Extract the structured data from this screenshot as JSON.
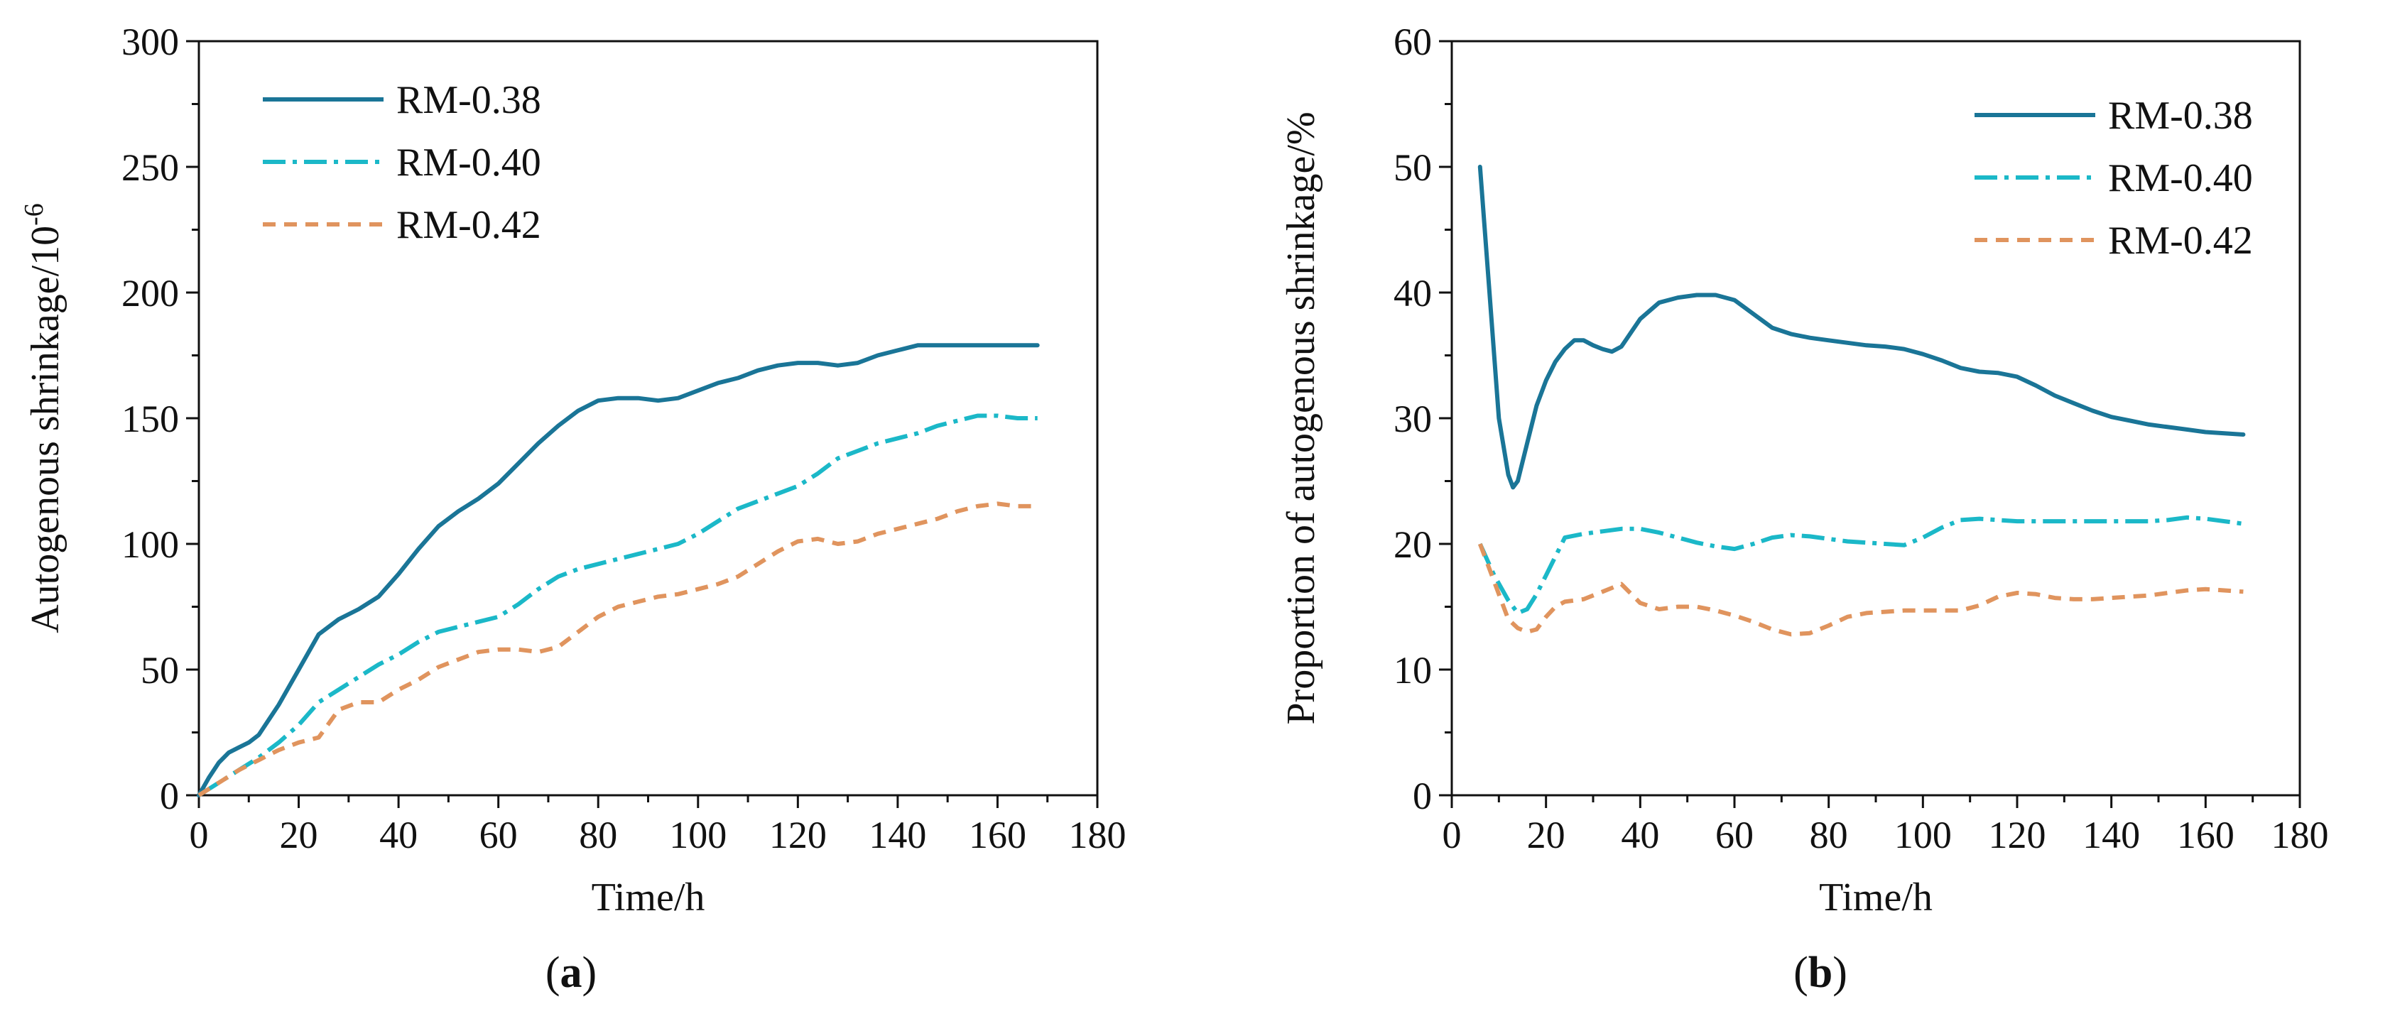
{
  "colors": {
    "RM-0.38": "#1a7597",
    "RM-0.40": "#1bb8c8",
    "RM-0.42": "#e0945e",
    "axis": "#111111"
  },
  "chart_data": [
    {
      "type": "line",
      "panel_label": "a",
      "xlabel": "Time/h",
      "ylabel": "Autogenous shrinkage/10",
      "ylabel_superscript": "-6",
      "xlim": [
        0,
        180
      ],
      "ylim": [
        0,
        300
      ],
      "xticks": [
        0,
        20,
        40,
        60,
        80,
        100,
        120,
        140,
        160,
        180
      ],
      "yticks": [
        0,
        50,
        100,
        150,
        200,
        250,
        300
      ],
      "xtick_labels": [
        "0",
        "20",
        "40",
        "60",
        "80",
        "100",
        "120",
        "140",
        "160",
        "180"
      ],
      "ytick_labels": [
        "0",
        "50",
        "100",
        "150",
        "200",
        "250",
        "300"
      ],
      "legend_position": "top-left",
      "grid": false,
      "series": [
        {
          "name": "RM-0.38",
          "style": "solid",
          "x": [
            0,
            2,
            4,
            6,
            8,
            10,
            12,
            16,
            20,
            24,
            28,
            32,
            36,
            40,
            44,
            48,
            52,
            56,
            60,
            64,
            68,
            72,
            76,
            80,
            84,
            88,
            92,
            96,
            100,
            104,
            108,
            112,
            116,
            120,
            124,
            128,
            132,
            136,
            140,
            144,
            148,
            152,
            156,
            160,
            164,
            168
          ],
          "values": [
            0,
            7,
            13,
            17,
            19,
            21,
            24,
            36,
            50,
            64,
            70,
            74,
            79,
            88,
            98,
            107,
            113,
            118,
            124,
            132,
            140,
            147,
            153,
            157,
            158,
            158,
            157,
            158,
            161,
            164,
            166,
            169,
            171,
            172,
            172,
            171,
            172,
            175,
            177,
            179,
            179,
            179,
            179,
            179,
            179,
            179
          ]
        },
        {
          "name": "RM-0.40",
          "style": "dashdot",
          "x": [
            0,
            4,
            8,
            12,
            16,
            20,
            24,
            28,
            32,
            36,
            40,
            44,
            48,
            52,
            56,
            60,
            64,
            68,
            72,
            76,
            80,
            84,
            88,
            92,
            96,
            100,
            104,
            108,
            112,
            116,
            120,
            124,
            128,
            132,
            136,
            140,
            144,
            148,
            152,
            156,
            160,
            164,
            168
          ],
          "values": [
            0,
            5,
            10,
            15,
            21,
            28,
            37,
            42,
            47,
            52,
            56,
            61,
            65,
            67,
            69,
            71,
            76,
            82,
            87,
            90,
            92,
            94,
            96,
            98,
            100,
            104,
            109,
            114,
            117,
            120,
            123,
            128,
            134,
            137,
            140,
            142,
            144,
            147,
            149,
            151,
            151,
            150,
            150
          ]
        },
        {
          "name": "RM-0.42",
          "style": "dashed",
          "x": [
            0,
            4,
            8,
            12,
            16,
            20,
            24,
            28,
            32,
            36,
            40,
            44,
            48,
            52,
            56,
            60,
            64,
            68,
            72,
            76,
            80,
            84,
            88,
            92,
            96,
            100,
            104,
            108,
            112,
            116,
            120,
            124,
            128,
            132,
            136,
            140,
            144,
            148,
            152,
            156,
            160,
            164,
            168
          ],
          "values": [
            0,
            5,
            10,
            14,
            18,
            21,
            23,
            34,
            37,
            37,
            42,
            46,
            51,
            54,
            57,
            58,
            58,
            57,
            59,
            65,
            71,
            75,
            77,
            79,
            80,
            82,
            84,
            87,
            92,
            97,
            101,
            102,
            100,
            101,
            104,
            106,
            108,
            110,
            113,
            115,
            116,
            115,
            115
          ]
        }
      ]
    },
    {
      "type": "line",
      "panel_label": "b",
      "xlabel": "Time/h",
      "ylabel": "Proportion of autogenous shrinkage/%",
      "xlim": [
        0,
        180
      ],
      "ylim": [
        0,
        60
      ],
      "xticks": [
        0,
        20,
        40,
        60,
        80,
        100,
        120,
        140,
        160,
        180
      ],
      "yticks": [
        0,
        10,
        20,
        30,
        40,
        50,
        60
      ],
      "xtick_labels": [
        "0",
        "20",
        "40",
        "60",
        "80",
        "100",
        "120",
        "140",
        "160",
        "180"
      ],
      "ytick_labels": [
        "0",
        "10",
        "20",
        "30",
        "40",
        "50",
        "60"
      ],
      "legend_position": "top-right",
      "grid": false,
      "series": [
        {
          "name": "RM-0.38",
          "style": "solid",
          "x": [
            6,
            8,
            10,
            12,
            13,
            14,
            16,
            18,
            20,
            22,
            24,
            26,
            28,
            30,
            32,
            34,
            36,
            38,
            40,
            44,
            48,
            52,
            56,
            60,
            64,
            68,
            72,
            76,
            80,
            84,
            88,
            92,
            96,
            100,
            104,
            108,
            112,
            116,
            120,
            124,
            128,
            132,
            136,
            140,
            144,
            148,
            152,
            156,
            160,
            164,
            168
          ],
          "values": [
            50,
            40,
            30,
            25.5,
            24.5,
            25,
            28,
            31,
            33,
            34.5,
            35.5,
            36.2,
            36.2,
            35.8,
            35.5,
            35.3,
            35.7,
            36.8,
            37.9,
            39.2,
            39.6,
            39.8,
            39.8,
            39.4,
            38.3,
            37.2,
            36.7,
            36.4,
            36.2,
            36.0,
            35.8,
            35.7,
            35.5,
            35.1,
            34.6,
            34.0,
            33.7,
            33.6,
            33.3,
            32.6,
            31.8,
            31.2,
            30.6,
            30.1,
            29.8,
            29.5,
            29.3,
            29.1,
            28.9,
            28.8,
            28.7
          ]
        },
        {
          "name": "RM-0.40",
          "style": "dashdot",
          "x": [
            6,
            9,
            12,
            14,
            16,
            18,
            20,
            22,
            24,
            28,
            32,
            36,
            40,
            44,
            48,
            52,
            56,
            60,
            64,
            68,
            72,
            76,
            80,
            84,
            88,
            92,
            96,
            100,
            104,
            108,
            112,
            116,
            120,
            124,
            128,
            132,
            136,
            140,
            144,
            148,
            152,
            156,
            160,
            164,
            168
          ],
          "values": [
            20,
            17.5,
            15.5,
            14.5,
            14.8,
            16,
            17.5,
            19,
            20.5,
            20.8,
            21.0,
            21.2,
            21.2,
            20.9,
            20.5,
            20.1,
            19.8,
            19.6,
            20.0,
            20.5,
            20.7,
            20.6,
            20.4,
            20.2,
            20.1,
            20.0,
            19.9,
            20.5,
            21.3,
            21.9,
            22.0,
            21.9,
            21.8,
            21.8,
            21.8,
            21.8,
            21.8,
            21.8,
            21.8,
            21.8,
            21.9,
            22.1,
            22.0,
            21.8,
            21.6
          ]
        },
        {
          "name": "RM-0.42",
          "style": "dashed",
          "x": [
            6,
            8,
            10,
            12,
            14,
            16,
            18,
            20,
            22,
            24,
            28,
            32,
            36,
            40,
            44,
            48,
            52,
            56,
            60,
            64,
            68,
            72,
            76,
            80,
            84,
            88,
            92,
            96,
            100,
            104,
            108,
            112,
            116,
            120,
            124,
            128,
            132,
            136,
            140,
            144,
            148,
            152,
            156,
            160,
            164,
            168
          ],
          "values": [
            20,
            18,
            16,
            14,
            13.3,
            13.0,
            13.2,
            14.2,
            15.0,
            15.4,
            15.6,
            16.2,
            16.8,
            15.3,
            14.8,
            15.0,
            15.0,
            14.7,
            14.3,
            13.8,
            13.2,
            12.8,
            12.9,
            13.5,
            14.2,
            14.5,
            14.6,
            14.7,
            14.7,
            14.7,
            14.7,
            15.1,
            15.8,
            16.1,
            16.0,
            15.7,
            15.6,
            15.6,
            15.7,
            15.8,
            15.9,
            16.1,
            16.3,
            16.4,
            16.3,
            16.2
          ]
        }
      ]
    }
  ]
}
